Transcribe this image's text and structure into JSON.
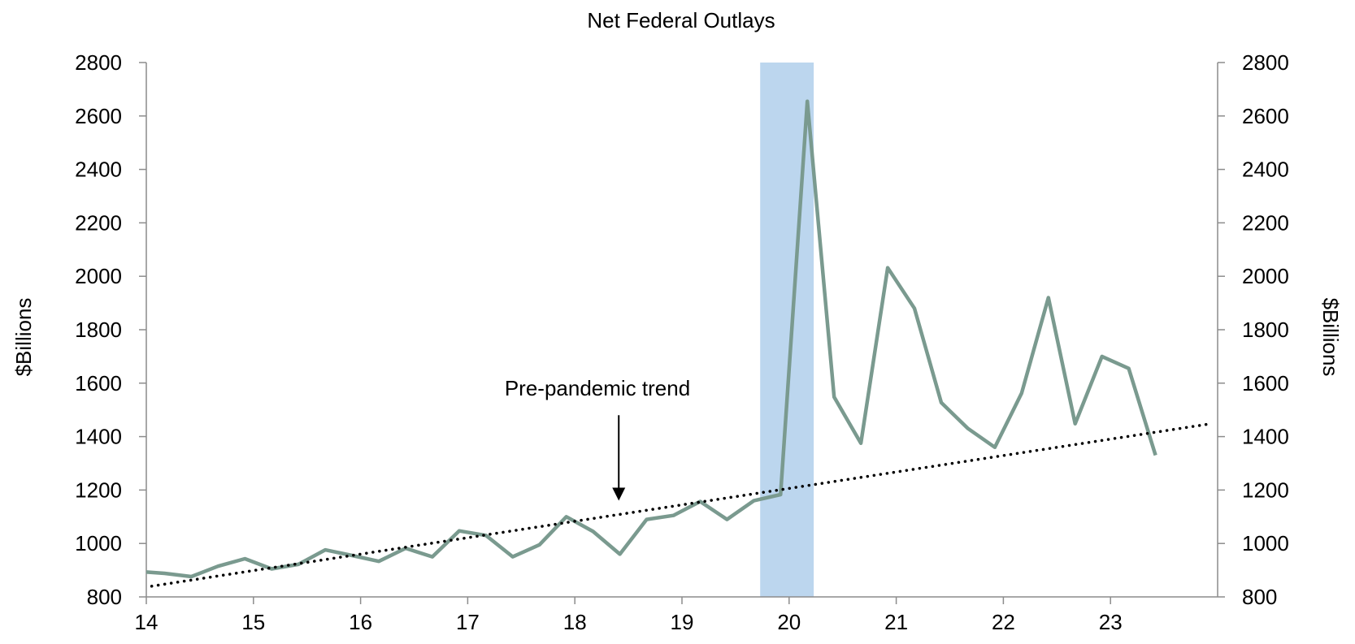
{
  "chart_data": {
    "type": "line",
    "title": "Net Federal Outlays",
    "ylabel_left": "$Billions",
    "ylabel_right": "$Billions",
    "xlabel": "",
    "x_ticks": [
      "14",
      "15",
      "16",
      "17",
      "18",
      "19",
      "20",
      "21",
      "22",
      "23"
    ],
    "xlim": [
      14,
      24
    ],
    "ylim": [
      800,
      2800
    ],
    "y_ticks": [
      800,
      1000,
      1200,
      1400,
      1600,
      1800,
      2000,
      2200,
      2400,
      2600,
      2800
    ],
    "grid": false,
    "recession_band": {
      "x_start": 19.73,
      "x_end": 20.23,
      "color": "#bcd6ee"
    },
    "annotation": {
      "text": "Pre-pandemic trend",
      "arrow_x": 18.41,
      "arrow_from_y": 1480,
      "arrow_to_y": 1160
    },
    "series": [
      {
        "color": "#7a9a8f",
        "x": [
          14.0,
          14.17,
          14.42,
          14.67,
          14.92,
          15.17,
          15.42,
          15.67,
          15.92,
          16.17,
          16.42,
          16.67,
          16.92,
          17.17,
          17.42,
          17.67,
          17.92,
          18.17,
          18.42,
          18.67,
          18.92,
          19.17,
          19.42,
          19.67,
          19.92,
          20.17,
          20.42,
          20.67,
          20.92,
          21.17,
          21.42,
          21.67,
          21.92,
          22.17,
          22.42,
          22.67,
          22.92,
          23.17,
          23.42
        ],
        "values": [
          893,
          888,
          876,
          915,
          943,
          905,
          922,
          976,
          955,
          933,
          982,
          950,
          1047,
          1030,
          950,
          995,
          1100,
          1045,
          960,
          1090,
          1105,
          1157,
          1090,
          1160,
          1183,
          2655,
          1548,
          1375,
          2032,
          1880,
          1527,
          1430,
          1360,
          1562,
          1920,
          1448,
          1700,
          1655,
          1330
        ]
      },
      {
        "style": "dotted",
        "color": "#000000",
        "x": [
          14.05,
          23.92
        ],
        "values": [
          840,
          1447
        ]
      }
    ]
  }
}
